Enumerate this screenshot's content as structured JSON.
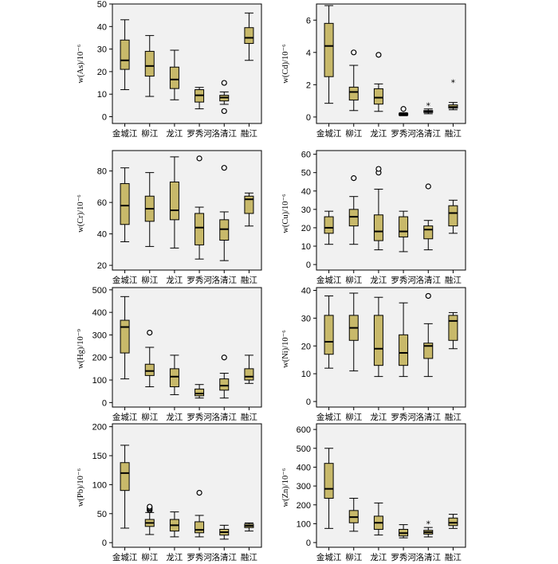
{
  "chart_data": [
    {
      "type": "box",
      "ylabel": "w(As)/10⁻⁶",
      "ylim": [
        -3,
        50
      ],
      "yticks": [
        0,
        10,
        20,
        30,
        40,
        50
      ],
      "categories": [
        "金城江",
        "柳江",
        "龙江",
        "罗秀河",
        "洛清江",
        "融江"
      ],
      "boxes": [
        {
          "min": 12,
          "q1": 21,
          "median": 25,
          "q3": 34,
          "max": 43,
          "outliers": [],
          "extremes": []
        },
        {
          "min": 9,
          "q1": 18,
          "median": 22.5,
          "q3": 29,
          "max": 36,
          "outliers": [],
          "extremes": []
        },
        {
          "min": 7.5,
          "q1": 12.5,
          "median": 16.5,
          "q3": 22,
          "max": 29.5,
          "outliers": [],
          "extremes": []
        },
        {
          "min": 3.5,
          "q1": 6.5,
          "median": 9.5,
          "q3": 12,
          "max": 13,
          "outliers": [],
          "extremes": []
        },
        {
          "min": 5.5,
          "q1": 7,
          "median": 8.5,
          "q3": 9.5,
          "max": 11,
          "outliers": [
            15,
            2.5
          ],
          "extremes": []
        },
        {
          "min": 25,
          "q1": 32.5,
          "median": 35,
          "q3": 39.5,
          "max": 46,
          "outliers": [],
          "extremes": []
        }
      ]
    },
    {
      "type": "box",
      "ylabel": "w(Cd)/10⁻⁶",
      "ylim": [
        -0.4,
        7
      ],
      "yticks": [
        0,
        2,
        4,
        6
      ],
      "categories": [
        "金城江",
        "柳江",
        "龙江",
        "罗秀河",
        "洛清江",
        "融江"
      ],
      "boxes": [
        {
          "min": 0.85,
          "q1": 2.5,
          "median": 4.4,
          "q3": 5.8,
          "max": 6.9,
          "outliers": [],
          "extremes": []
        },
        {
          "min": 0.4,
          "q1": 1.05,
          "median": 1.55,
          "q3": 1.85,
          "max": 3.2,
          "outliers": [
            4.0
          ],
          "extremes": []
        },
        {
          "min": 0.35,
          "q1": 0.8,
          "median": 1.2,
          "q3": 1.75,
          "max": 2.05,
          "outliers": [
            3.85
          ],
          "extremes": []
        },
        {
          "min": 0.08,
          "q1": 0.12,
          "median": 0.16,
          "q3": 0.22,
          "max": 0.27,
          "outliers": [
            0.5
          ],
          "extremes": []
        },
        {
          "min": 0.2,
          "q1": 0.28,
          "median": 0.34,
          "q3": 0.4,
          "max": 0.5,
          "outliers": [],
          "extremes": [
            0.7
          ]
        },
        {
          "min": 0.45,
          "q1": 0.55,
          "median": 0.62,
          "q3": 0.75,
          "max": 0.9,
          "outliers": [],
          "extremes": [
            2.15
          ]
        }
      ]
    },
    {
      "type": "box",
      "ylabel": "w(Cr)/10⁻⁶",
      "ylim": [
        17,
        93
      ],
      "yticks": [
        20,
        40,
        60,
        80
      ],
      "categories": [
        "金城江",
        "柳江",
        "龙江",
        "罗秀河",
        "洛清江",
        "融江"
      ],
      "boxes": [
        {
          "min": 35,
          "q1": 46,
          "median": 58,
          "q3": 72,
          "max": 82,
          "outliers": [],
          "extremes": []
        },
        {
          "min": 32,
          "q1": 48,
          "median": 56,
          "q3": 64,
          "max": 79,
          "outliers": [],
          "extremes": []
        },
        {
          "min": 31,
          "q1": 49,
          "median": 55,
          "q3": 73,
          "max": 89,
          "outliers": [],
          "extremes": []
        },
        {
          "min": 24,
          "q1": 33,
          "median": 44,
          "q3": 53,
          "max": 57,
          "outliers": [
            88
          ],
          "extremes": []
        },
        {
          "min": 23,
          "q1": 36,
          "median": 43,
          "q3": 49,
          "max": 54,
          "outliers": [
            82
          ],
          "extremes": []
        },
        {
          "min": 45,
          "q1": 53,
          "median": 62,
          "q3": 64,
          "max": 66,
          "outliers": [],
          "extremes": []
        }
      ]
    },
    {
      "type": "box",
      "ylabel": "w(Cu)/10⁻⁶",
      "ylim": [
        -3,
        62
      ],
      "yticks": [
        0,
        10,
        20,
        30,
        40,
        50,
        60
      ],
      "categories": [
        "金城江",
        "柳江",
        "龙江",
        "罗秀河",
        "洛清江",
        "融江"
      ],
      "boxes": [
        {
          "min": 11,
          "q1": 17,
          "median": 20,
          "q3": 26,
          "max": 29,
          "outliers": [],
          "extremes": []
        },
        {
          "min": 11,
          "q1": 21,
          "median": 26,
          "q3": 30,
          "max": 37,
          "outliers": [
            47
          ],
          "extremes": []
        },
        {
          "min": 8,
          "q1": 13,
          "median": 18,
          "q3": 27,
          "max": 41,
          "outliers": [
            50,
            52
          ],
          "extremes": []
        },
        {
          "min": 7,
          "q1": 15,
          "median": 18,
          "q3": 26,
          "max": 29,
          "outliers": [],
          "extremes": []
        },
        {
          "min": 8,
          "q1": 14,
          "median": 19,
          "q3": 21,
          "max": 24,
          "outliers": [
            42.5
          ],
          "extremes": []
        },
        {
          "min": 17,
          "q1": 21,
          "median": 28,
          "q3": 32,
          "max": 35,
          "outliers": [],
          "extremes": []
        }
      ]
    },
    {
      "type": "box",
      "ylabel": "w(Hg)/10⁻⁹",
      "ylim": [
        -20,
        510
      ],
      "yticks": [
        0,
        100,
        200,
        300,
        400,
        500
      ],
      "categories": [
        "金城江",
        "柳江",
        "龙江",
        "罗秀河",
        "洛清江",
        "融江"
      ],
      "boxes": [
        {
          "min": 105,
          "q1": 220,
          "median": 335,
          "q3": 365,
          "max": 470,
          "outliers": [],
          "extremes": []
        },
        {
          "min": 70,
          "q1": 120,
          "median": 140,
          "q3": 170,
          "max": 245,
          "outliers": [
            310
          ],
          "extremes": []
        },
        {
          "min": 35,
          "q1": 70,
          "median": 115,
          "q3": 150,
          "max": 210,
          "outliers": [],
          "extremes": []
        },
        {
          "min": 20,
          "q1": 30,
          "median": 40,
          "q3": 60,
          "max": 80,
          "outliers": [],
          "extremes": []
        },
        {
          "min": 20,
          "q1": 55,
          "median": 75,
          "q3": 105,
          "max": 130,
          "outliers": [
            200
          ],
          "extremes": []
        },
        {
          "min": 85,
          "q1": 100,
          "median": 115,
          "q3": 150,
          "max": 210,
          "outliers": [],
          "extremes": []
        }
      ]
    },
    {
      "type": "box",
      "ylabel": "w(Ni)/10⁻⁶",
      "ylim": [
        -2,
        41
      ],
      "yticks": [
        0,
        10,
        20,
        30,
        40
      ],
      "categories": [
        "金城江",
        "柳江",
        "龙江",
        "罗秀河",
        "洛清江",
        "融江"
      ],
      "boxes": [
        {
          "min": 12,
          "q1": 17,
          "median": 21.5,
          "q3": 31,
          "max": 38,
          "outliers": [],
          "extremes": []
        },
        {
          "min": 11,
          "q1": 22,
          "median": 26.5,
          "q3": 31,
          "max": 39,
          "outliers": [],
          "extremes": []
        },
        {
          "min": 9,
          "q1": 13,
          "median": 19,
          "q3": 31,
          "max": 37.5,
          "outliers": [],
          "extremes": []
        },
        {
          "min": 9,
          "q1": 13,
          "median": 17.5,
          "q3": 24,
          "max": 35.5,
          "outliers": [],
          "extremes": []
        },
        {
          "min": 9,
          "q1": 15.5,
          "median": 20,
          "q3": 21,
          "max": 28,
          "outliers": [
            38
          ],
          "extremes": []
        },
        {
          "min": 19,
          "q1": 22,
          "median": 29,
          "q3": 31,
          "max": 32,
          "outliers": [],
          "extremes": []
        }
      ]
    },
    {
      "type": "box",
      "ylabel": "w(Pb)/10⁻⁶",
      "ylim": [
        -8,
        205
      ],
      "yticks": [
        0,
        50,
        100,
        150,
        200
      ],
      "categories": [
        "金城江",
        "柳江",
        "龙江",
        "罗秀河",
        "洛清江",
        "融江"
      ],
      "boxes": [
        {
          "min": 25,
          "q1": 90,
          "median": 120,
          "q3": 138,
          "max": 168,
          "outliers": [],
          "extremes": []
        },
        {
          "min": 14,
          "q1": 28,
          "median": 34,
          "q3": 40,
          "max": 52,
          "outliers": [
            56,
            58,
            60,
            62
          ],
          "extremes": []
        },
        {
          "min": 10,
          "q1": 20,
          "median": 30,
          "q3": 40,
          "max": 53,
          "outliers": [],
          "extremes": []
        },
        {
          "min": 10,
          "q1": 17,
          "median": 22,
          "q3": 36,
          "max": 47,
          "outliers": [
            86
          ],
          "extremes": []
        },
        {
          "min": 6,
          "q1": 13,
          "median": 18,
          "q3": 23,
          "max": 30,
          "outliers": [],
          "extremes": []
        },
        {
          "min": 20,
          "q1": 26,
          "median": 29,
          "q3": 32,
          "max": 34,
          "outliers": [],
          "extremes": []
        }
      ]
    },
    {
      "type": "box",
      "ylabel": "w(Zn)/10⁻⁶",
      "ylim": [
        -25,
        630
      ],
      "yticks": [
        0,
        100,
        200,
        300,
        400,
        500,
        600
      ],
      "categories": [
        "金城江",
        "柳江",
        "龙江",
        "罗秀河",
        "洛清江",
        "融江"
      ],
      "boxes": [
        {
          "min": 75,
          "q1": 235,
          "median": 285,
          "q3": 420,
          "max": 500,
          "outliers": [],
          "extremes": []
        },
        {
          "min": 60,
          "q1": 105,
          "median": 135,
          "q3": 170,
          "max": 235,
          "outliers": [],
          "extremes": []
        },
        {
          "min": 40,
          "q1": 70,
          "median": 105,
          "q3": 140,
          "max": 210,
          "outliers": [],
          "extremes": []
        },
        {
          "min": 25,
          "q1": 35,
          "median": 50,
          "q3": 70,
          "max": 95,
          "outliers": [],
          "extremes": []
        },
        {
          "min": 30,
          "q1": 45,
          "median": 55,
          "q3": 65,
          "max": 80,
          "outliers": [],
          "extremes": [
            100
          ]
        },
        {
          "min": 75,
          "q1": 90,
          "median": 105,
          "q3": 130,
          "max": 150,
          "outliers": [],
          "extremes": []
        }
      ]
    }
  ]
}
